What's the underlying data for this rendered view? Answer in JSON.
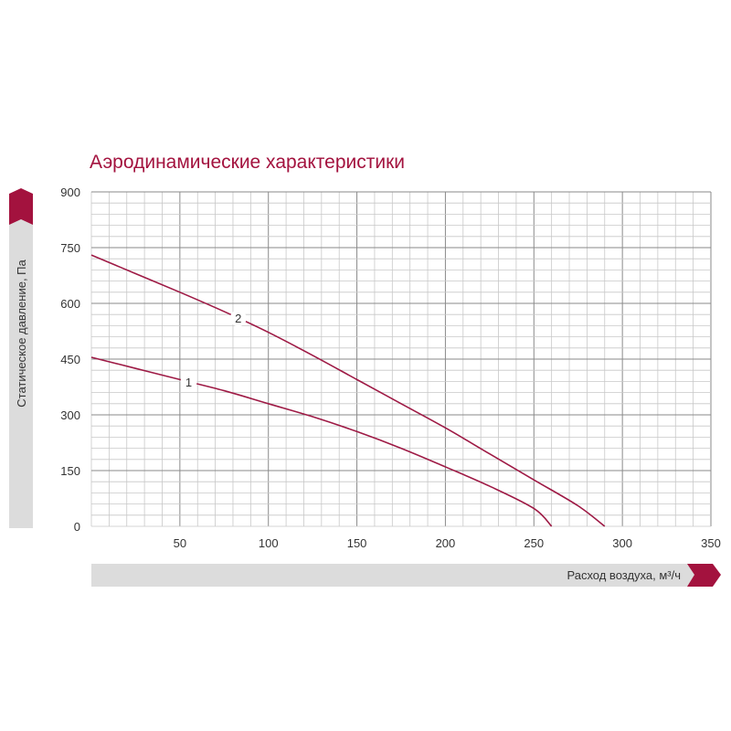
{
  "colors": {
    "accent": "#a3123e",
    "band": "#dcdcdc",
    "grid_minor": "#c8c8c8",
    "grid_major": "#8a8a8a",
    "curve": "#9e1a45"
  },
  "chart_data": {
    "type": "line",
    "title": "Аэродинамические характеристики",
    "xlabel": "Расход воздуха, м³/ч",
    "ylabel": "Статическое давление, Па",
    "xlim": [
      0,
      350
    ],
    "ylim": [
      0,
      900
    ],
    "x_ticks": [
      50,
      100,
      150,
      200,
      250,
      300,
      350
    ],
    "y_ticks": [
      0,
      150,
      300,
      450,
      600,
      750,
      900
    ],
    "grid": true,
    "series": [
      {
        "name": "1",
        "points": [
          [
            0,
            455
          ],
          [
            25,
            425
          ],
          [
            50,
            395
          ],
          [
            75,
            365
          ],
          [
            100,
            330
          ],
          [
            125,
            295
          ],
          [
            150,
            255
          ],
          [
            175,
            210
          ],
          [
            200,
            160
          ],
          [
            225,
            108
          ],
          [
            250,
            48
          ],
          [
            260,
            0
          ]
        ]
      },
      {
        "name": "2",
        "points": [
          [
            0,
            730
          ],
          [
            25,
            680
          ],
          [
            50,
            630
          ],
          [
            75,
            578
          ],
          [
            100,
            522
          ],
          [
            125,
            460
          ],
          [
            150,
            395
          ],
          [
            175,
            330
          ],
          [
            200,
            265
          ],
          [
            225,
            195
          ],
          [
            250,
            125
          ],
          [
            275,
            55
          ],
          [
            290,
            0
          ]
        ]
      }
    ]
  }
}
